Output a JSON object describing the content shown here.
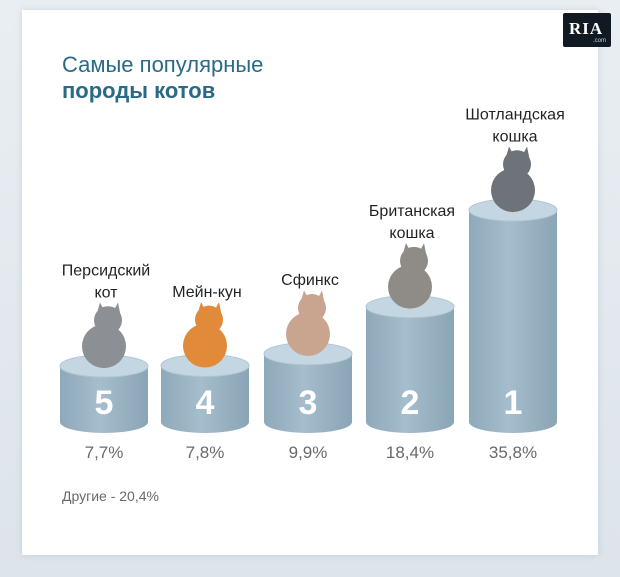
{
  "header": {
    "title_line1": "Самые популярные",
    "title_line2": "породы котов"
  },
  "logo": {
    "text": "RIA",
    "sub": ".com"
  },
  "footnote": "Другие - 20,4%",
  "colors": {
    "title": "#2a6a86",
    "cylinder_body": "#a5bdcc",
    "cylinder_top": "#c4d6e1",
    "rank_number": "#ffffff",
    "value_text": "#666a6e"
  },
  "chart_data": {
    "type": "bar",
    "categories": [
      [
        "Персидский",
        "кот"
      ],
      [
        "Мейн-кун"
      ],
      [
        "Сфинкс"
      ],
      [
        "Британская",
        "кошка"
      ],
      [
        "Шотландская",
        "кошка"
      ]
    ],
    "ranks": [
      "5",
      "4",
      "3",
      "2",
      "1"
    ],
    "values": [
      7.7,
      7.8,
      9.9,
      18.4,
      35.8
    ],
    "value_labels": [
      "7,7%",
      "7,8%",
      "9,9%",
      "18,4%",
      "35,8%"
    ],
    "unit": "%",
    "grid": false,
    "legend": "none"
  }
}
